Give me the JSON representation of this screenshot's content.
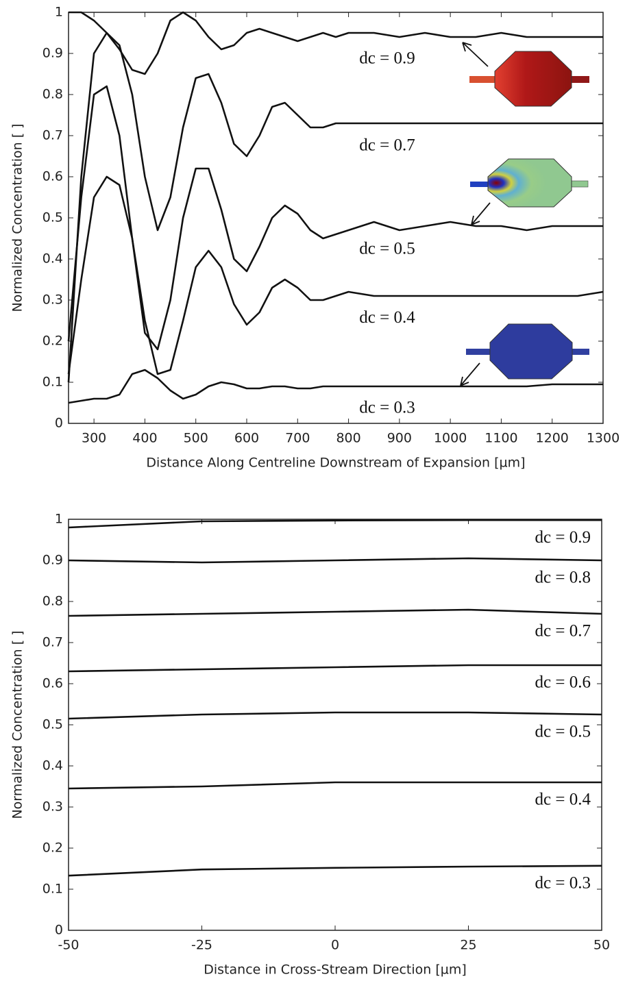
{
  "chart_data": [
    {
      "type": "line",
      "xlabel": "Distance Along Centreline Downstream of Expansion [µm]",
      "ylabel": "Normalized Concentration [  ]",
      "xlim": [
        250,
        1300
      ],
      "xticks": [
        300,
        400,
        500,
        600,
        700,
        800,
        900,
        1000,
        1100,
        1200,
        1300
      ],
      "ylim": [
        0,
        1
      ],
      "yticks": [
        0,
        0.1,
        0.2,
        0.3,
        0.4,
        0.5,
        0.6,
        0.7,
        0.8,
        0.9,
        1
      ],
      "x": [
        250,
        275,
        300,
        325,
        350,
        375,
        400,
        425,
        450,
        475,
        500,
        525,
        550,
        575,
        600,
        625,
        650,
        675,
        700,
        725,
        750,
        775,
        800,
        850,
        900,
        950,
        1000,
        1050,
        1100,
        1150,
        1200,
        1250,
        1300
      ],
      "series": [
        {
          "name": "dc = 0.9",
          "color": "#111111",
          "values": [
            1.0,
            1.0,
            0.98,
            0.95,
            0.91,
            0.86,
            0.85,
            0.9,
            0.98,
            1.0,
            0.98,
            0.94,
            0.91,
            0.92,
            0.95,
            0.96,
            0.95,
            0.94,
            0.93,
            0.94,
            0.95,
            0.94,
            0.95,
            0.95,
            0.94,
            0.95,
            0.94,
            0.94,
            0.95,
            0.94,
            0.94,
            0.94,
            0.94
          ]
        },
        {
          "name": "dc = 0.7",
          "color": "#111111",
          "values": [
            0.1,
            0.6,
            0.9,
            0.95,
            0.92,
            0.8,
            0.6,
            0.47,
            0.55,
            0.72,
            0.84,
            0.85,
            0.78,
            0.68,
            0.65,
            0.7,
            0.77,
            0.78,
            0.75,
            0.72,
            0.72,
            0.73,
            0.73,
            0.73,
            0.73,
            0.73,
            0.73,
            0.73,
            0.73,
            0.73,
            0.73,
            0.73,
            0.73
          ]
        },
        {
          "name": "dc = 0.5",
          "color": "#111111",
          "values": [
            0.2,
            0.55,
            0.8,
            0.82,
            0.7,
            0.45,
            0.22,
            0.18,
            0.3,
            0.5,
            0.62,
            0.62,
            0.52,
            0.4,
            0.37,
            0.43,
            0.5,
            0.53,
            0.51,
            0.47,
            0.45,
            0.46,
            0.47,
            0.49,
            0.47,
            0.48,
            0.49,
            0.48,
            0.48,
            0.47,
            0.48,
            0.48,
            0.48
          ]
        },
        {
          "name": "dc = 0.4",
          "color": "#111111",
          "values": [
            0.12,
            0.35,
            0.55,
            0.6,
            0.58,
            0.45,
            0.25,
            0.12,
            0.13,
            0.25,
            0.38,
            0.42,
            0.38,
            0.29,
            0.24,
            0.27,
            0.33,
            0.35,
            0.33,
            0.3,
            0.3,
            0.31,
            0.32,
            0.31,
            0.31,
            0.31,
            0.31,
            0.31,
            0.31,
            0.31,
            0.31,
            0.31,
            0.32
          ]
        },
        {
          "name": "dc = 0.3",
          "color": "#111111",
          "values": [
            0.05,
            0.055,
            0.06,
            0.06,
            0.07,
            0.12,
            0.13,
            0.11,
            0.08,
            0.06,
            0.07,
            0.09,
            0.1,
            0.095,
            0.085,
            0.085,
            0.09,
            0.09,
            0.085,
            0.085,
            0.09,
            0.09,
            0.09,
            0.09,
            0.09,
            0.09,
            0.09,
            0.09,
            0.09,
            0.09,
            0.095,
            0.095,
            0.095
          ]
        }
      ]
    },
    {
      "type": "line",
      "xlabel": "Distance in Cross-Stream Direction [µm]",
      "ylabel": "Normalized Concentration [  ]",
      "xlim": [
        -50,
        50
      ],
      "xticks": [
        -50,
        -25,
        0,
        25,
        50
      ],
      "ylim": [
        0,
        1
      ],
      "yticks": [
        0,
        0.1,
        0.2,
        0.3,
        0.4,
        0.5,
        0.6,
        0.7,
        0.8,
        0.9,
        1
      ],
      "x": [
        -50,
        -25,
        0,
        25,
        50
      ],
      "series": [
        {
          "name": "dc = 0.9",
          "color": "#111111",
          "values": [
            0.98,
            0.995,
            0.997,
            0.998,
            0.998
          ]
        },
        {
          "name": "dc = 0.8",
          "color": "#111111",
          "values": [
            0.9,
            0.895,
            0.9,
            0.905,
            0.9
          ]
        },
        {
          "name": "dc = 0.7",
          "color": "#111111",
          "values": [
            0.765,
            0.77,
            0.775,
            0.78,
            0.77
          ]
        },
        {
          "name": "dc = 0.6",
          "color": "#111111",
          "values": [
            0.63,
            0.635,
            0.64,
            0.645,
            0.645
          ]
        },
        {
          "name": "dc = 0.5",
          "color": "#111111",
          "values": [
            0.515,
            0.525,
            0.53,
            0.53,
            0.525
          ]
        },
        {
          "name": "dc = 0.4",
          "color": "#111111",
          "values": [
            0.345,
            0.35,
            0.36,
            0.36,
            0.36
          ]
        },
        {
          "name": "dc = 0.3",
          "color": "#111111",
          "values": [
            0.133,
            0.148,
            0.152,
            0.155,
            0.157
          ]
        }
      ]
    }
  ]
}
